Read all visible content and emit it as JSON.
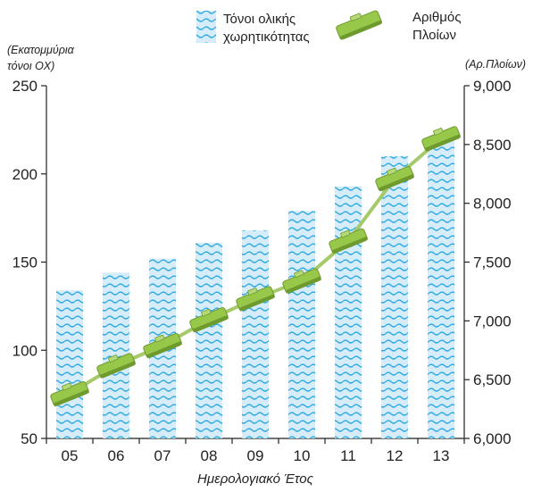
{
  "chart_data": {
    "type": "bar",
    "categories": [
      "05",
      "06",
      "07",
      "08",
      "09",
      "10",
      "11",
      "12",
      "13"
    ],
    "xlabel": "Ημερολογιακό Έτος",
    "y_left": {
      "unit_label": [
        "(Εκατομμύρια",
        "τόνοι ΟΧ)"
      ],
      "ylim": [
        50,
        250
      ],
      "ticks": [
        50,
        100,
        150,
        200,
        250
      ],
      "tick_labels": [
        "50",
        "100",
        "150",
        "200",
        "250"
      ]
    },
    "y_right": {
      "unit_label": "(Αρ.Πλοίων)",
      "ylim": [
        6000,
        9000
      ],
      "ticks": [
        6000,
        6500,
        7000,
        7500,
        8000,
        8500,
        9000
      ],
      "tick_labels": [
        "6,000",
        "6,500",
        "7,000",
        "7,500",
        "8,000",
        "8,500",
        "9,000"
      ]
    },
    "series": [
      {
        "name": [
          "Τόνοι ολικής",
          "χωρητικότητας"
        ],
        "type": "bar",
        "axis": "left",
        "values": [
          134,
          144,
          152,
          161,
          168,
          179,
          193,
          210,
          219
        ]
      },
      {
        "name": [
          "Αριθμός",
          "Πλοίων"
        ],
        "type": "line",
        "axis": "right",
        "values": [
          6380,
          6620,
          6790,
          7010,
          7190,
          7340,
          7680,
          8210,
          8550
        ]
      }
    ],
    "grid": false,
    "legend": "top",
    "colors": {
      "bar_fill": "#d6ecf8",
      "bar_wave": "#29a8e0",
      "line": "#a6c96a",
      "marker": "#98c84a",
      "marker_dark": "#6f9a2e",
      "axis": "#222222"
    }
  }
}
